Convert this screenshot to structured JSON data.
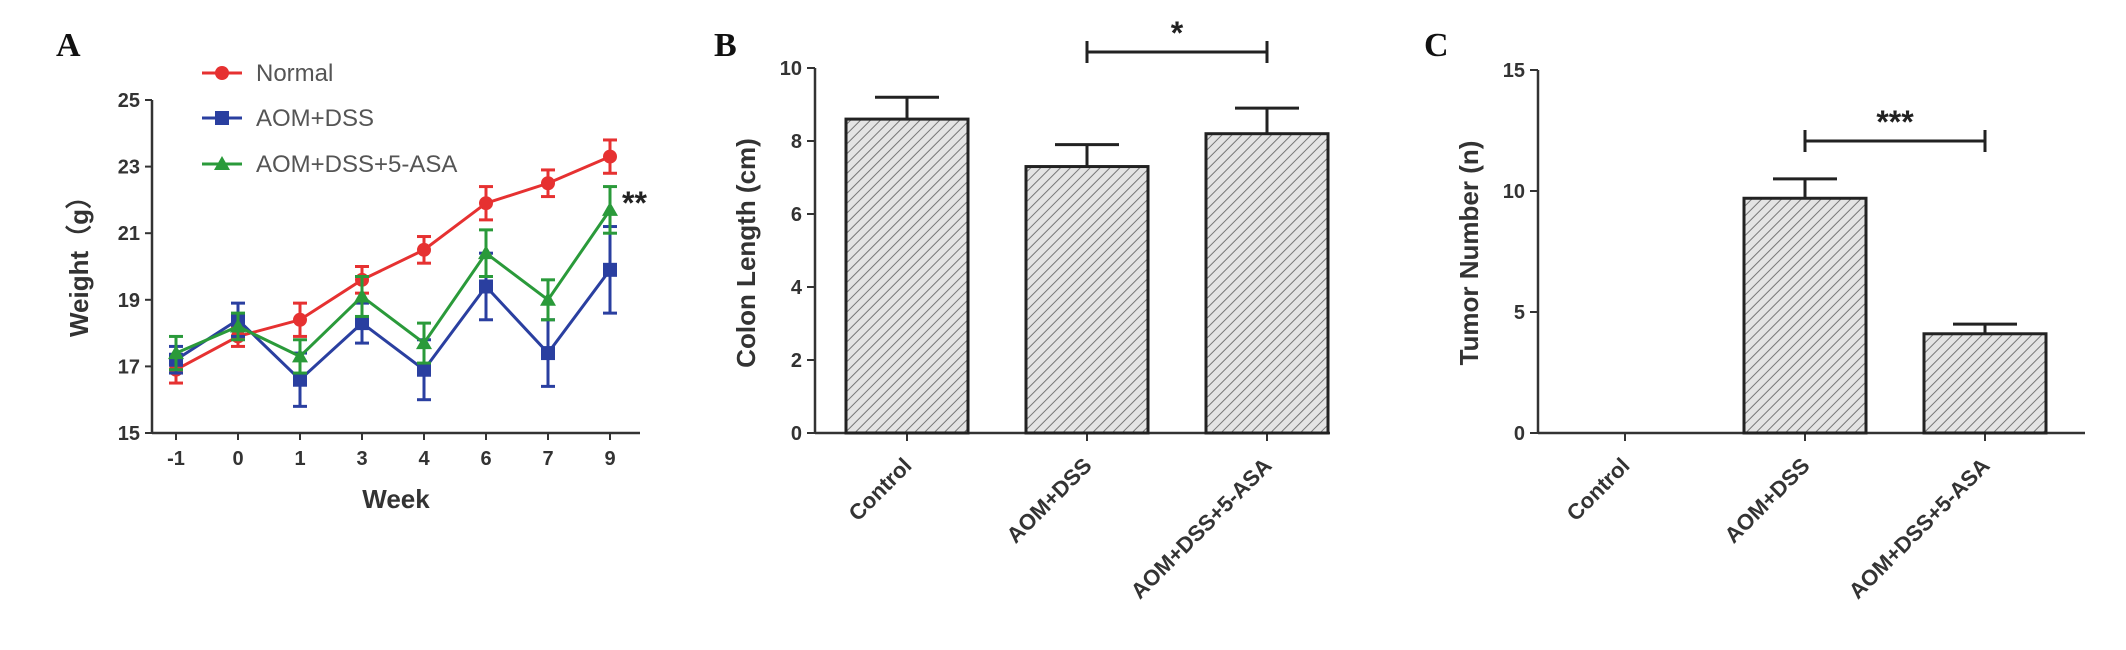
{
  "panels": {
    "a": {
      "label": "A"
    },
    "b": {
      "label": "B"
    },
    "c": {
      "label": "C"
    }
  },
  "chart_data": [
    {
      "type": "line",
      "panel": "A",
      "title": "",
      "xlabel": "Week",
      "ylabel": "Weight（g）",
      "categories": [
        "-1",
        "0",
        "1",
        "3",
        "4",
        "6",
        "7",
        "9"
      ],
      "ylim": [
        15,
        25
      ],
      "yticks": [
        15,
        17,
        19,
        21,
        23,
        25
      ],
      "legend_position": "top-left",
      "series": [
        {
          "name": "Normal",
          "color": "#e63131",
          "marker": "circle",
          "values": [
            16.9,
            17.9,
            18.4,
            19.6,
            20.5,
            21.9,
            22.5,
            23.3
          ],
          "errors": [
            0.4,
            0.3,
            0.5,
            0.4,
            0.4,
            0.5,
            0.4,
            0.5
          ]
        },
        {
          "name": "AOM+DSS",
          "color": "#2a3fa0",
          "marker": "square",
          "values": [
            17.2,
            18.4,
            16.6,
            18.3,
            16.9,
            19.4,
            17.4,
            19.9
          ],
          "errors": [
            0.4,
            0.5,
            0.8,
            0.6,
            0.9,
            1.0,
            1.0,
            1.3
          ]
        },
        {
          "name": "AOM+DSS+5-ASA",
          "color": "#2a9a3a",
          "marker": "triangle",
          "values": [
            17.4,
            18.2,
            17.3,
            19.1,
            17.7,
            20.4,
            19.0,
            21.7
          ],
          "errors": [
            0.5,
            0.4,
            0.5,
            0.6,
            0.6,
            0.7,
            0.6,
            0.7
          ]
        }
      ],
      "annotations": [
        {
          "text": "**",
          "x": "9",
          "y": 22.0
        }
      ],
      "grid": false
    },
    {
      "type": "bar",
      "panel": "B",
      "title": "",
      "xlabel": "",
      "ylabel": "Colon Length (cm)",
      "categories": [
        "Control",
        "AOM+DSS",
        "AOM+DSS+5-ASA"
      ],
      "values": [
        8.6,
        7.3,
        8.2
      ],
      "errors": [
        0.6,
        0.6,
        0.7
      ],
      "ylim": [
        0,
        10
      ],
      "yticks": [
        0,
        2,
        4,
        6,
        8,
        10
      ],
      "fill": "hatched",
      "significance": [
        {
          "from": "AOM+DSS",
          "to": "AOM+DSS+5-ASA",
          "label": "*"
        }
      ],
      "grid": false
    },
    {
      "type": "bar",
      "panel": "C",
      "title": "",
      "xlabel": "",
      "ylabel": "Tumor Number (n)",
      "categories": [
        "Control",
        "AOM+DSS",
        "AOM+DSS+5-ASA"
      ],
      "values": [
        0,
        9.7,
        4.1
      ],
      "errors": [
        0,
        0.8,
        0.4
      ],
      "ylim": [
        0,
        15
      ],
      "yticks": [
        0,
        5,
        10,
        15
      ],
      "fill": "hatched",
      "significance": [
        {
          "from": "AOM+DSS",
          "to": "AOM+DSS+5-ASA",
          "label": "***"
        }
      ],
      "grid": false
    }
  ]
}
